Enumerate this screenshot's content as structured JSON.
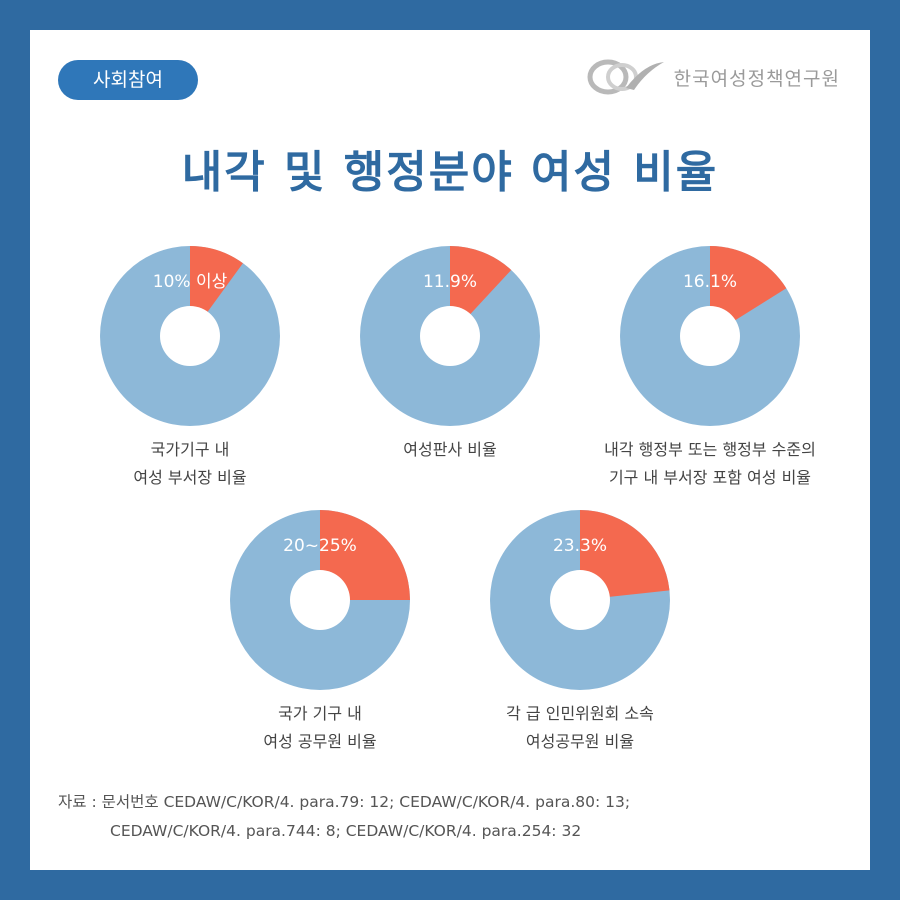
{
  "header": {
    "category": "사회참여",
    "org_name": "한국여성정책연구원"
  },
  "title": "내각 및 행정분야 여성 비율",
  "colors": {
    "background": "#2f6aa1",
    "badge": "#2f77b9",
    "title": "#2f6aa1",
    "women_share": "#f4694f",
    "remainder": "#8db8d8"
  },
  "chart_data": [
    {
      "type": "pie",
      "title": "국가기구 내\n여성 부서장 비율",
      "label": "10% 이상",
      "values": [
        {
          "name": "",
          "value": 10
        },
        {
          "name": "",
          "value": 90
        }
      ]
    },
    {
      "type": "pie",
      "title": "여성판사 비율",
      "label": "11.9%",
      "values": [
        {
          "name": "",
          "value": 11.9
        },
        {
          "name": "",
          "value": 88.1
        }
      ]
    },
    {
      "type": "pie",
      "title": "내각 행정부 또는 행정부 수준의\n기구 내 부서장 포함 여성 비율",
      "label": "16.1%",
      "values": [
        {
          "name": "",
          "value": 16.1
        },
        {
          "name": "",
          "value": 83.9
        }
      ]
    },
    {
      "type": "pie",
      "title": "국가 기구 내\n여성 공무원 비율",
      "label": "20~25%",
      "values": [
        {
          "name": "",
          "value": 25
        },
        {
          "name": "",
          "value": 75
        }
      ]
    },
    {
      "type": "pie",
      "title": "각 급 인민위원회 소속\n여성공무원 비율",
      "label": "23.3%",
      "values": [
        {
          "name": "",
          "value": 23.3
        },
        {
          "name": "",
          "value": 76.7
        }
      ]
    }
  ],
  "source": {
    "line1": "자료 : 문서번호 CEDAW/C/KOR/4. para.79: 12; CEDAW/C/KOR/4. para.80: 13;",
    "line2": "CEDAW/C/KOR/4. para.744: 8; CEDAW/C/KOR/4. para.254: 32"
  }
}
